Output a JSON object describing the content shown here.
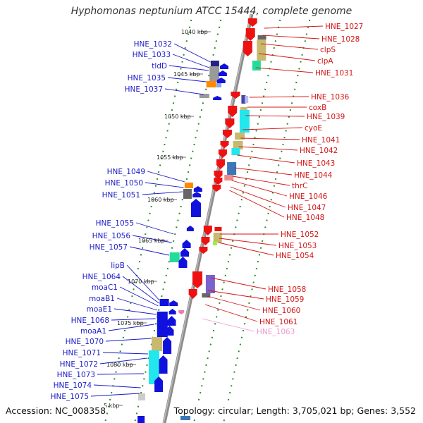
{
  "title": "Hyphomonas neptunium ATCC 15444, complete genome",
  "accession": "Accession: NC_008358",
  "summary": "Topology: circular; Length: 3,705,021 bp; Genes: 3,552",
  "colors": {
    "left_label": "#1a1ac8",
    "right_label": "#d41414",
    "faint_label": "#f29ad0",
    "backbone": "#8c8c8c",
    "tick": "#2a8a2a"
  },
  "kbp_labels": [
    "1040 kbp",
    "1045 kbp",
    "1050 kbp",
    "1055 kbp",
    "1060 kbp",
    "1065 kbp",
    "1070 kbp",
    "1075 kbp",
    "1080 kbp",
    "5 kbp"
  ],
  "left_genes": [
    "HNE_1032",
    "HNE_1033",
    "tldD",
    "HNE_1035",
    "HNE_1037",
    "HNE_1049",
    "HNE_1050",
    "HNE_1051",
    "HNE_1055",
    "HNE_1056",
    "HNE_1057",
    "lipB",
    "HNE_1064",
    "moaC1",
    "moaB1",
    "moaE1",
    "HNE_1068",
    "moaA1",
    "HNE_1070",
    "HNE_1071",
    "HNE_1072",
    "HNE_1073",
    "HNE_1074",
    "HNE_1075"
  ],
  "right_genes": [
    "HNE_1027",
    "HNE_1028",
    "clpS",
    "clpA",
    "HNE_1031",
    "HNE_1036",
    "coxB",
    "HNE_1039",
    "cyoE",
    "HNE_1041",
    "HNE_1042",
    "HNE_1043",
    "HNE_1044",
    "thrC",
    "HNE_1046",
    "HNE_1047",
    "HNE_1048",
    "HNE_1052",
    "HNE_1053",
    "HNE_1054",
    "HNE_1058",
    "HNE_1059",
    "HNE_1060",
    "HNE_1061",
    "HNE_1063"
  ]
}
